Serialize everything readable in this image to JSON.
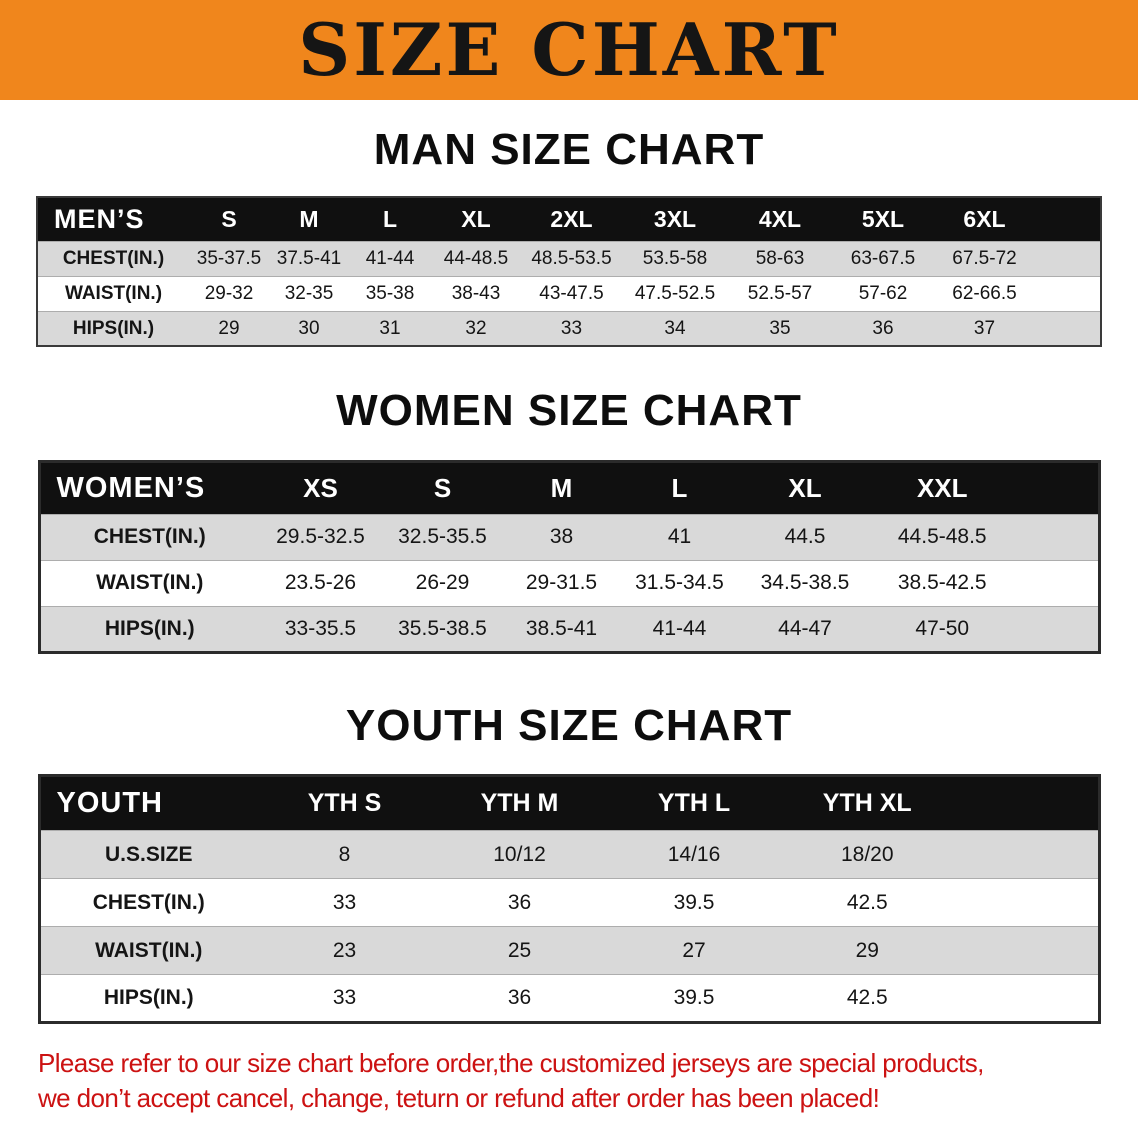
{
  "banner": {
    "title": "SIZE CHART"
  },
  "colors": {
    "banner_orange": "#f0861c",
    "table_header_black": "#101010",
    "row_stripe_gray": "#d9d9d9",
    "disclaimer_red": "#cc1212"
  },
  "sections": [
    {
      "id": "men",
      "heading": "MAN SIZE CHART",
      "table": {
        "title": "MEN’S",
        "sizes": [
          "S",
          "M",
          "L",
          "XL",
          "2XL",
          "3XL",
          "4XL",
          "5XL",
          "6XL"
        ],
        "rows": [
          {
            "label": "CHEST(IN.)",
            "values": [
              "35-37.5",
              "37.5-41",
              "41-44",
              "44-48.5",
              "48.5-53.5",
              "53.5-58",
              "58-63",
              "63-67.5",
              "67.5-72"
            ]
          },
          {
            "label": "WAIST(IN.)",
            "values": [
              "29-32",
              "32-35",
              "35-38",
              "38-43",
              "43-47.5",
              "47.5-52.5",
              "52.5-57",
              "57-62",
              "62-66.5"
            ]
          },
          {
            "label": "HIPS(IN.)",
            "values": [
              "29",
              "30",
              "31",
              "32",
              "33",
              "34",
              "35",
              "36",
              "37"
            ]
          }
        ]
      }
    },
    {
      "id": "women",
      "heading": "WOMEN SIZE CHART",
      "table": {
        "title": "WOMEN’S",
        "sizes": [
          "XS",
          "S",
          "M",
          "L",
          "XL",
          "XXL"
        ],
        "rows": [
          {
            "label": "CHEST(IN.)",
            "values": [
              "29.5-32.5",
              "32.5-35.5",
              "38",
              "41",
              "44.5",
              "44.5-48.5"
            ]
          },
          {
            "label": "WAIST(IN.)",
            "values": [
              "23.5-26",
              "26-29",
              "29-31.5",
              "31.5-34.5",
              "34.5-38.5",
              "38.5-42.5"
            ]
          },
          {
            "label": "HIPS(IN.)",
            "values": [
              "33-35.5",
              "35.5-38.5",
              "38.5-41",
              "41-44",
              "44-47",
              "47-50"
            ]
          }
        ]
      }
    },
    {
      "id": "youth",
      "heading": "YOUTH SIZE CHART",
      "table": {
        "title": "YOUTH",
        "sizes": [
          "YTH S",
          "YTH M",
          "YTH L",
          "YTH XL"
        ],
        "rows": [
          {
            "label": "U.S.SIZE",
            "values": [
              "8",
              "10/12",
              "14/16",
              "18/20"
            ]
          },
          {
            "label": "CHEST(IN.)",
            "values": [
              "33",
              "36",
              "39.5",
              "42.5"
            ]
          },
          {
            "label": "WAIST(IN.)",
            "values": [
              "23",
              "25",
              "27",
              "29"
            ]
          },
          {
            "label": "HIPS(IN.)",
            "values": [
              "33",
              "36",
              "39.5",
              "42.5"
            ]
          }
        ]
      }
    }
  ],
  "disclaimer": {
    "line1": "Please refer to our size chart before order,the customized jerseys are special products,",
    "line2": "we don’t accept cancel, change, teturn or refund after order has been placed!"
  }
}
